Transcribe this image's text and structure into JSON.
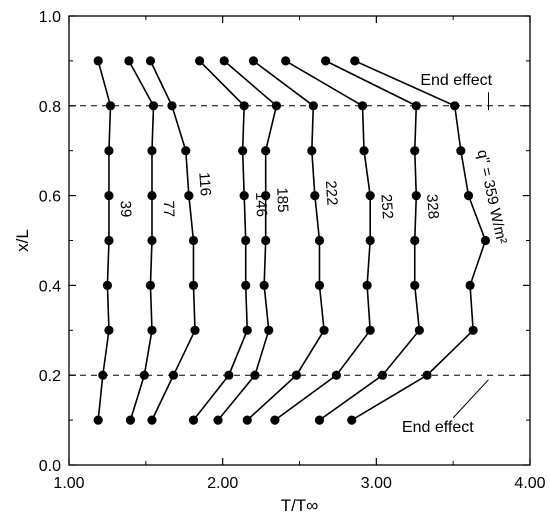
{
  "chart_data": {
    "type": "line",
    "xlabel": "T/T∞",
    "ylabel": "x/L",
    "xlim": [
      1.0,
      4.0
    ],
    "ylim": [
      0.0,
      1.0
    ],
    "xticks": [
      1.0,
      2.0,
      3.0,
      4.0
    ],
    "xtick_labels": [
      "1.00",
      "2.00",
      "3.00",
      "4.00"
    ],
    "yticks": [
      0.0,
      0.2,
      0.4,
      0.6,
      0.8,
      1.0
    ],
    "ytick_labels": [
      "0.0",
      "0.2",
      "0.4",
      "0.6",
      "0.8",
      "1.0"
    ],
    "grid": false,
    "reference_lines": [
      0.2,
      0.8
    ],
    "annotations": [
      {
        "id": "top",
        "text": "End effect",
        "x": 3.52,
        "y": 0.846
      },
      {
        "id": "bottom",
        "text": "End effect",
        "x": 3.4,
        "y": 0.073
      }
    ],
    "y": [
      0.1,
      0.2,
      0.3,
      0.4,
      0.5,
      0.6,
      0.7,
      0.8,
      0.9
    ],
    "series": [
      {
        "label": "39",
        "x": [
          1.19,
          1.22,
          1.26,
          1.25,
          1.26,
          1.26,
          1.26,
          1.27,
          1.19
        ]
      },
      {
        "label": "77",
        "x": [
          1.4,
          1.49,
          1.54,
          1.53,
          1.54,
          1.54,
          1.54,
          1.55,
          1.39
        ]
      },
      {
        "label": "116",
        "x": [
          1.54,
          1.68,
          1.82,
          1.81,
          1.81,
          1.78,
          1.76,
          1.67,
          1.53
        ]
      },
      {
        "label": "146",
        "x": [
          1.81,
          2.04,
          2.16,
          2.15,
          2.15,
          2.14,
          2.13,
          2.14,
          1.85
        ]
      },
      {
        "label": "185",
        "x": [
          1.97,
          2.21,
          2.3,
          2.27,
          2.28,
          2.28,
          2.28,
          2.35,
          2.01
        ]
      },
      {
        "label": "222",
        "x": [
          2.16,
          2.48,
          2.66,
          2.63,
          2.63,
          2.6,
          2.58,
          2.59,
          2.2
        ]
      },
      {
        "label": "252",
        "x": [
          2.34,
          2.74,
          2.96,
          2.94,
          2.96,
          2.96,
          2.92,
          2.91,
          2.41
        ]
      },
      {
        "label": "328",
        "x": [
          2.63,
          3.04,
          3.28,
          3.25,
          3.25,
          3.26,
          3.25,
          3.26,
          2.67
        ]
      },
      {
        "label": "q\" = 359 W/m²",
        "x": [
          2.84,
          3.33,
          3.63,
          3.61,
          3.71,
          3.6,
          3.55,
          3.51,
          2.86
        ]
      }
    ]
  }
}
